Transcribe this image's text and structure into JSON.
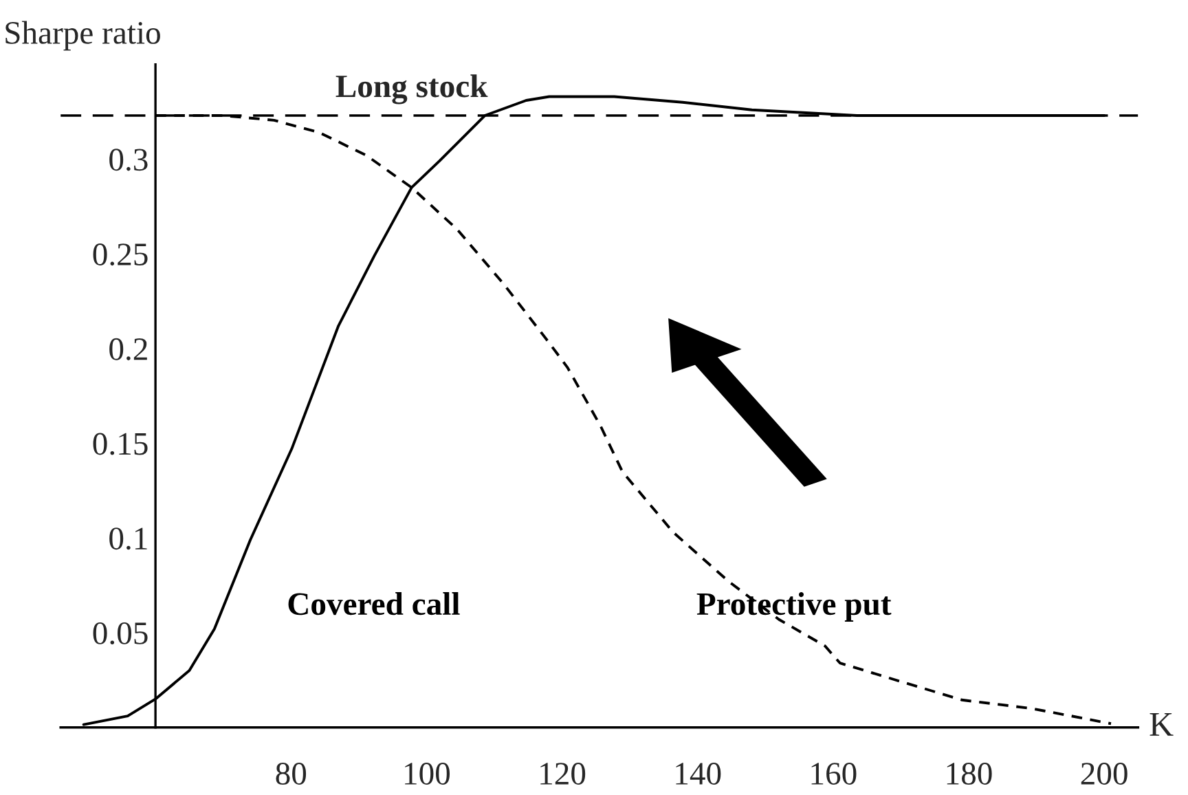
{
  "chart_data": {
    "type": "line",
    "xlabel": "K",
    "ylabel": "Sharpe ratio",
    "xlim": [
      46,
      205
    ],
    "ylim": [
      0,
      0.35
    ],
    "xticks": [
      80,
      100,
      120,
      140,
      160,
      180,
      200
    ],
    "yticks": [
      0.05,
      0.1,
      0.15,
      0.2,
      0.25,
      0.3
    ],
    "grid": false,
    "legend": false,
    "marker": "none",
    "ref_lines": [
      {
        "axis": "y",
        "value": 0.323,
        "label": "Long stock",
        "color": "#000000",
        "line_style": "dashed"
      }
    ],
    "series": [
      {
        "name": "Covered call",
        "color": "#000000",
        "line_style": "solid",
        "x": [
          49.4,
          55.9,
          60,
          65,
          68.7,
          74,
          80.1,
          87,
          92.3,
          97.8,
          101.9,
          108.6,
          114.7,
          118.1,
          124.8,
          127.7,
          137.8,
          148,
          163.5,
          200
        ],
        "values": [
          0.0015,
          0.006,
          0.015,
          0.03,
          0.052,
          0.099,
          0.147,
          0.212,
          0.249,
          0.285,
          0.299,
          0.323,
          0.331,
          0.333,
          0.333,
          0.333,
          0.33,
          0.326,
          0.323,
          0.323
        ]
      },
      {
        "name": "Protective put",
        "color": "#000000",
        "line_style": "dashed",
        "x": [
          60,
          70,
          77.5,
          84.2,
          91.1,
          97.8,
          104.5,
          111.4,
          118.1,
          120.8,
          125.7,
          128.9,
          136.4,
          144.6,
          152,
          158.8,
          161,
          170.2,
          179,
          189.3,
          201
        ],
        "values": [
          0.323,
          0.323,
          0.3205,
          0.314,
          0.302,
          0.285,
          0.263,
          0.234,
          0.203,
          0.19,
          0.159,
          0.135,
          0.103,
          0.077,
          0.057,
          0.043,
          0.034,
          0.024,
          0.0145,
          0.01,
          0.002
        ]
      }
    ]
  }
}
